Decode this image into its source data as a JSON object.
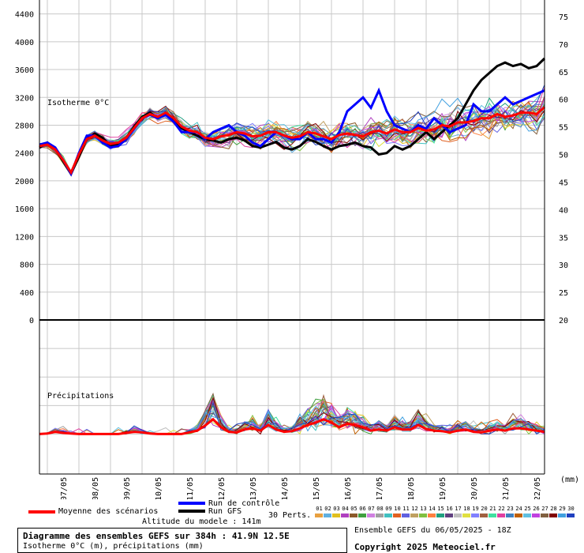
{
  "chart_data": [
    {
      "type": "line",
      "label": "Isotherme 0°C",
      "ylim": [
        0,
        4600
      ],
      "yticks": [
        0,
        400,
        800,
        1200,
        1600,
        2000,
        2400,
        2800,
        3200,
        3600,
        4000,
        4400
      ],
      "right_ylim": [
        20,
        78
      ],
      "right_yticks": [
        20,
        25,
        30,
        35,
        40,
        45,
        50,
        55,
        60,
        65,
        70,
        75
      ],
      "xlabels": [
        "07/05",
        "08/05",
        "09/05",
        "10/05",
        "11/05",
        "12/05",
        "13/05",
        "14/05",
        "15/05",
        "16/05",
        "17/05",
        "18/05",
        "19/05",
        "20/05",
        "21/05",
        "22/05"
      ],
      "x_hours": [
        0,
        6,
        12,
        18,
        24,
        30,
        36,
        42,
        48,
        54,
        60,
        66,
        72,
        78,
        84,
        90,
        96,
        102,
        108,
        114,
        120,
        126,
        132,
        138,
        144,
        150,
        156,
        162,
        168,
        174,
        180,
        186,
        192,
        198,
        204,
        210,
        216,
        222,
        228,
        234,
        240,
        246,
        252,
        258,
        264,
        270,
        276,
        282,
        288,
        294,
        300,
        306,
        312,
        318,
        324,
        330,
        336,
        342,
        348,
        354,
        360,
        366,
        372,
        378,
        384
      ],
      "mean": [
        2500,
        2520,
        2450,
        2300,
        2120,
        2380,
        2600,
        2650,
        2580,
        2530,
        2550,
        2620,
        2760,
        2900,
        2960,
        2920,
        2980,
        2900,
        2780,
        2720,
        2700,
        2620,
        2600,
        2640,
        2660,
        2700,
        2680,
        2640,
        2650,
        2700,
        2700,
        2650,
        2620,
        2640,
        2700,
        2680,
        2640,
        2600,
        2660,
        2680,
        2660,
        2640,
        2700,
        2720,
        2680,
        2740,
        2700,
        2700,
        2760,
        2720,
        2740,
        2800,
        2780,
        2840,
        2840,
        2860,
        2900,
        2900,
        2960,
        2920,
        2940,
        2980,
        2980,
        2960,
        3060
      ],
      "control": [
        2520,
        2550,
        2480,
        2300,
        2100,
        2400,
        2650,
        2650,
        2550,
        2480,
        2500,
        2600,
        2750,
        2900,
        2950,
        2900,
        2950,
        2850,
        2700,
        2700,
        2700,
        2600,
        2700,
        2750,
        2800,
        2700,
        2650,
        2550,
        2500,
        2600,
        2700,
        2650,
        2600,
        2600,
        2700,
        2600,
        2600,
        2550,
        2700,
        3000,
        3100,
        3200,
        3050,
        3300,
        3000,
        2800,
        2750,
        2700,
        2800,
        2750,
        2900,
        2800,
        2700,
        2750,
        2800,
        3100,
        3000,
        3000,
        3100,
        3200,
        3100,
        3150,
        3200,
        3250,
        3300
      ],
      "gfs": [
        2480,
        2550,
        2460,
        2280,
        2100,
        2350,
        2600,
        2680,
        2620,
        2500,
        2520,
        2620,
        2780,
        2920,
        2980,
        2900,
        2960,
        2880,
        2760,
        2700,
        2650,
        2600,
        2580,
        2550,
        2600,
        2620,
        2580,
        2500,
        2480,
        2520,
        2560,
        2480,
        2450,
        2500,
        2600,
        2560,
        2500,
        2450,
        2500,
        2520,
        2550,
        2500,
        2480,
        2380,
        2400,
        2500,
        2450,
        2500,
        2600,
        2700,
        2600,
        2700,
        2800,
        2900,
        3100,
        3300,
        3450,
        3550,
        3650,
        3700,
        3650,
        3680,
        3620,
        3650,
        3760
      ],
      "series_count": 30
    },
    {
      "type": "line",
      "label": "Précipitations",
      "unit": "(mm)",
      "ylim": [
        -7,
        20
      ],
      "right_yticks": [
        0,
        5,
        10,
        15,
        20
      ],
      "mean": [
        0,
        0.1,
        0.4,
        0.2,
        0.1,
        0,
        0,
        0,
        0,
        0,
        0,
        0.2,
        0.4,
        0.3,
        0.1,
        0,
        0,
        0,
        0,
        0.3,
        0.6,
        1.5,
        2.6,
        1.2,
        0.4,
        0.3,
        0.8,
        1.0,
        0.6,
        1.6,
        0.8,
        0.4,
        0.5,
        1.0,
        1.6,
        2.0,
        2.6,
        2.0,
        1.2,
        1.8,
        1.6,
        1.2,
        0.6,
        0.8,
        0.6,
        1.2,
        0.8,
        0.8,
        1.6,
        0.9,
        0.6,
        0.5,
        0.3,
        0.6,
        0.8,
        0.4,
        0.3,
        0.6,
        0.8,
        0.6,
        1.0,
        1.0,
        0.8,
        0.6,
        0.4
      ]
    }
  ],
  "legend": {
    "mean_label": "Moyenne des scénarios",
    "control_label": "Run de contrôle",
    "gfs_label": "Run GFS",
    "altitude": "Altitude du modele : 141m",
    "perts_label": "30 Perts.",
    "pert_numbers": [
      "01",
      "02",
      "03",
      "04",
      "05",
      "06",
      "07",
      "08",
      "09",
      "10",
      "11",
      "12",
      "13",
      "14",
      "15",
      "16",
      "17",
      "18",
      "19",
      "20",
      "21",
      "22",
      "23",
      "24",
      "25",
      "26",
      "27",
      "28",
      "29",
      "30"
    ],
    "pert_colors": [
      "#e8a040",
      "#60b0e0",
      "#e0c020",
      "#b040c0",
      "#8c5a2a",
      "#40a040",
      "#d080e0",
      "#a0a0a0",
      "#40c0c0",
      "#e06020",
      "#6060e0",
      "#c0a060",
      "#80c040",
      "#ff8040",
      "#20a080",
      "#604080",
      "#c0c0c0",
      "#e0e040",
      "#8080ff",
      "#a06040",
      "#40e0a0",
      "#e040a0",
      "#4080c0",
      "#c06000",
      "#60c0e0",
      "#c040e0",
      "#806040",
      "#800000",
      "#40a0e0",
      "#2040c0"
    ],
    "mean_color": "#ff0000",
    "control_color": "#0000ff",
    "gfs_color": "#000000"
  },
  "title": {
    "line1": "Diagramme des ensembles GEFS sur 384h : 41.9N 12.5E",
    "line2": "Isotherme 0°C (m), précipitations (mm)"
  },
  "run_info": "Ensemble GEFS du 06/05/2025 - 18Z",
  "copyright": "Copyright 2025 Meteociel.fr"
}
